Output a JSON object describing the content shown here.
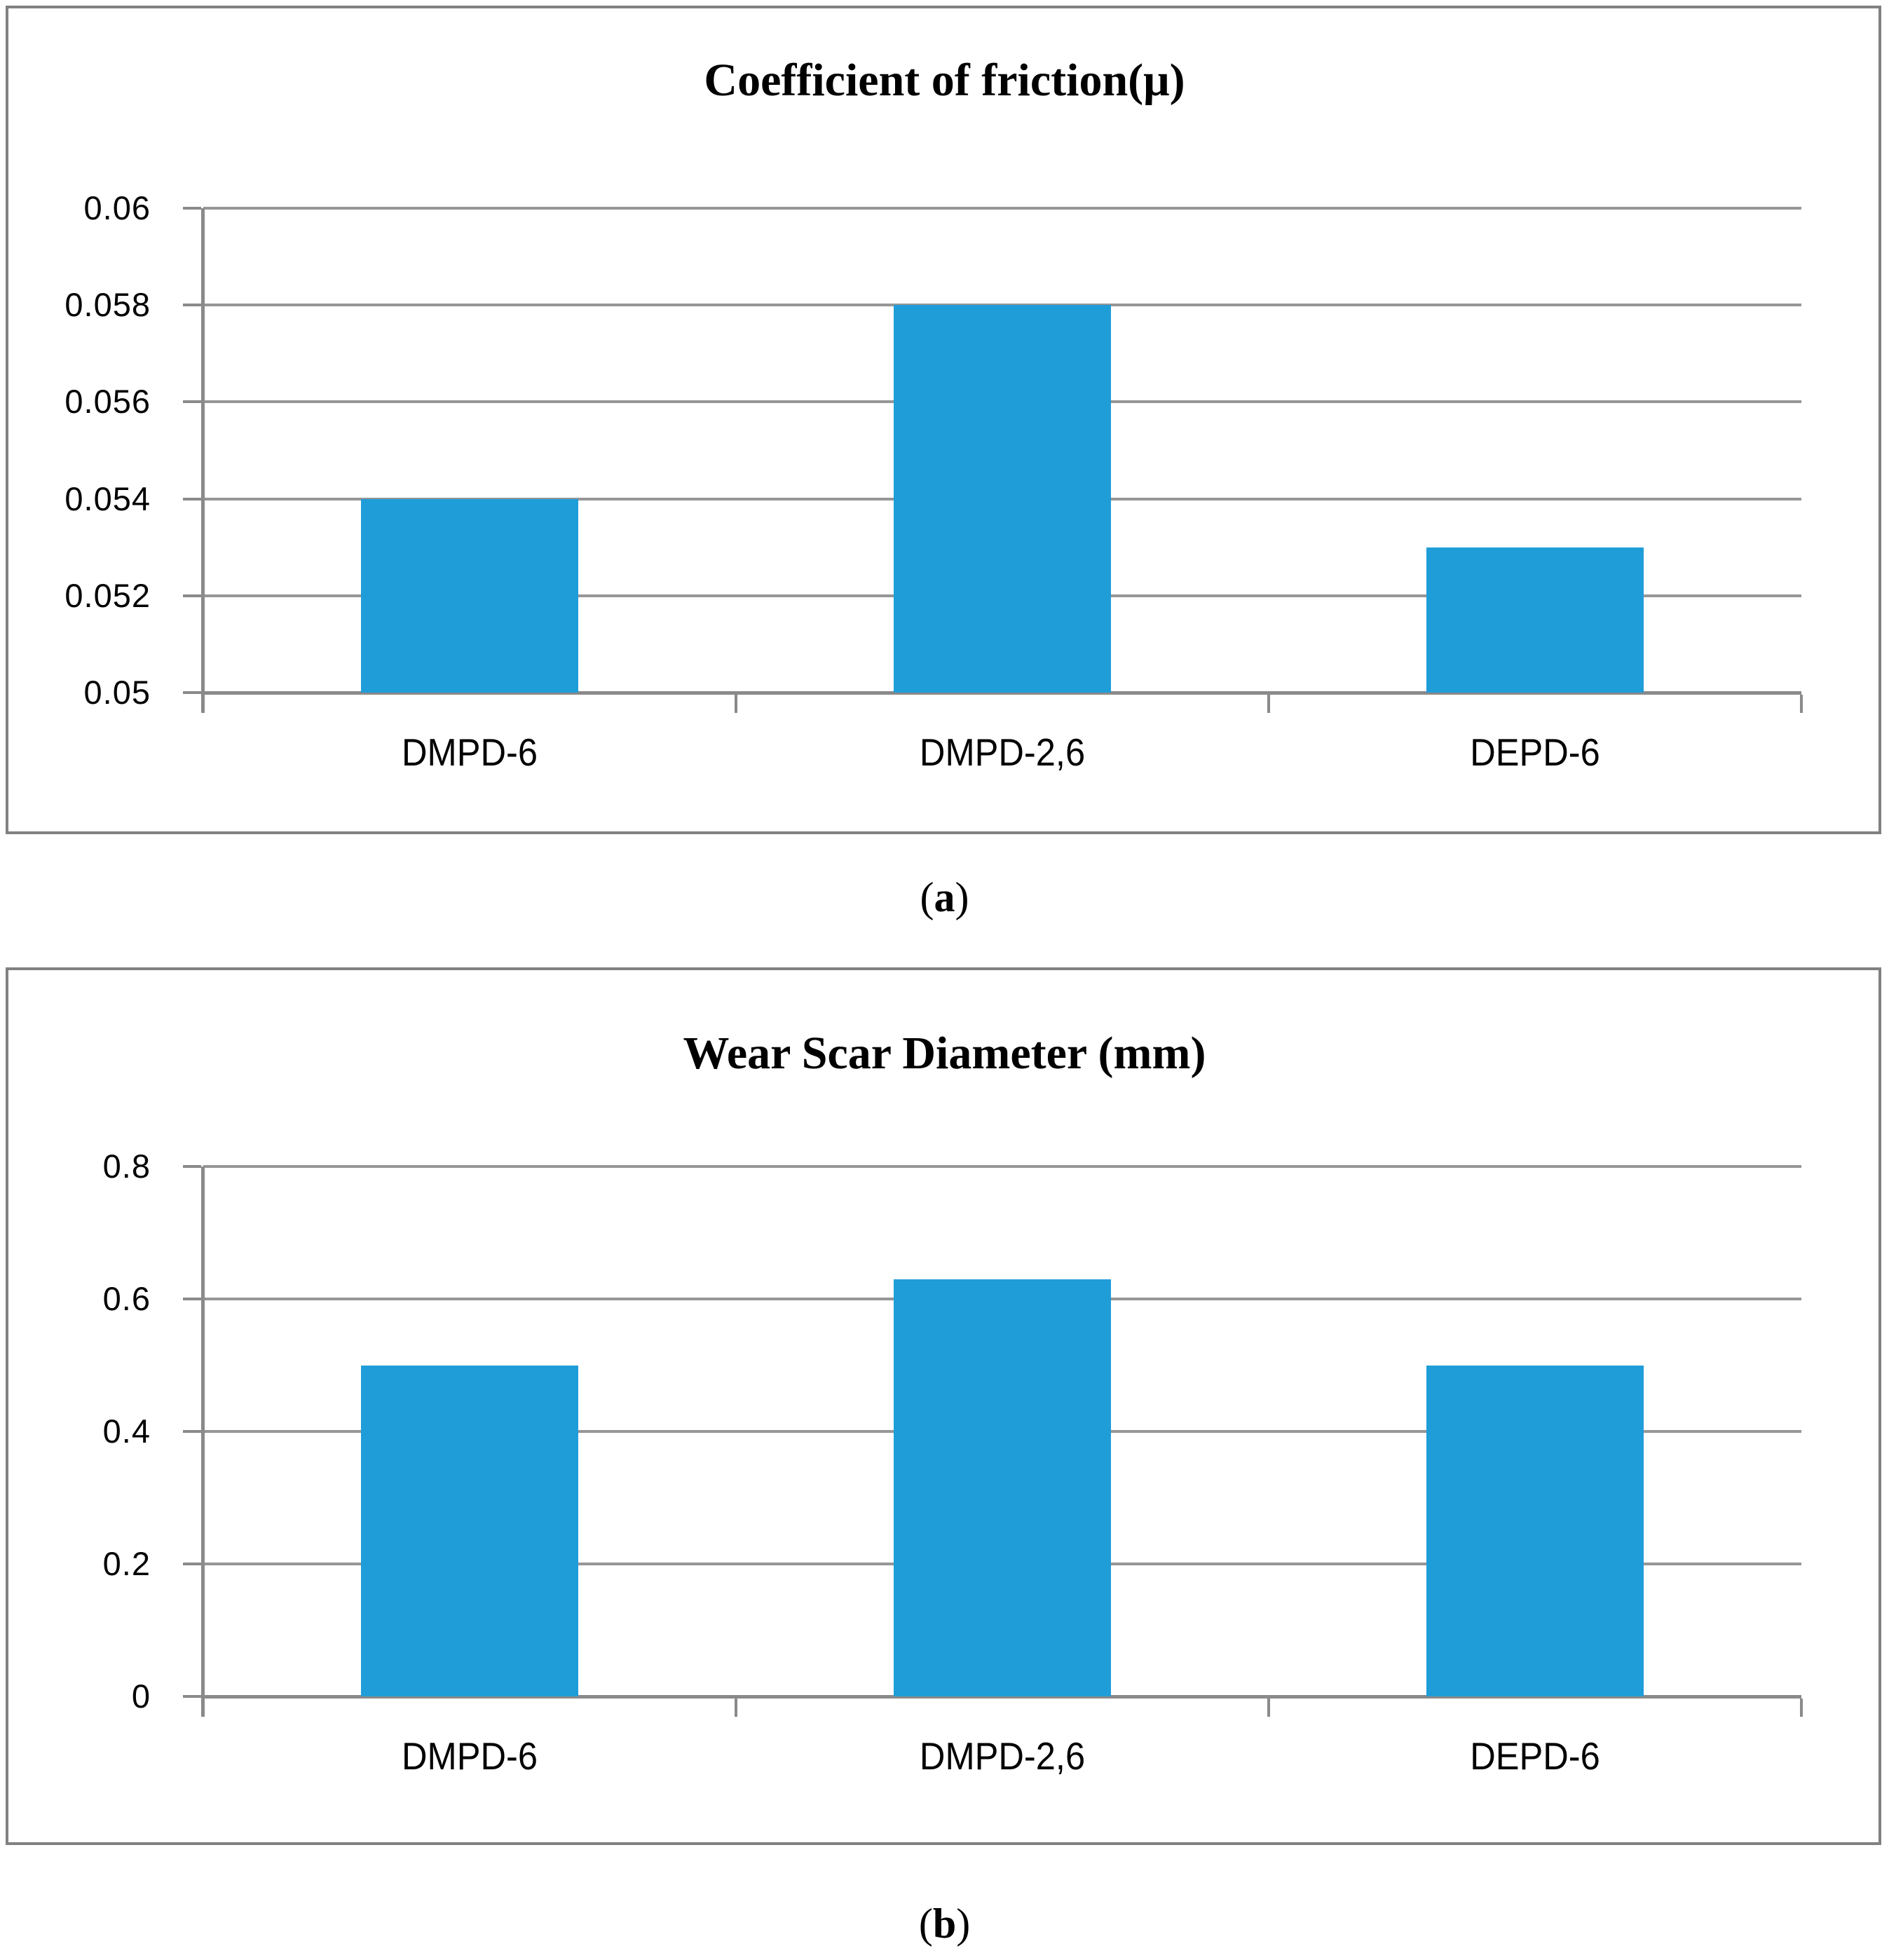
{
  "colors": {
    "bar": "#1F9DD8",
    "gridline": "#969696",
    "axis": "#8A8A8A",
    "box_border": "#818181",
    "text": "#000000",
    "background": "#FFFFFF"
  },
  "captions": {
    "a": "a",
    "b": "b"
  },
  "chart_data": [
    {
      "type": "bar",
      "title": "Coefficient of friction(μ)",
      "caption": "a",
      "categories": [
        "DMPD-6",
        "DMPD-2,6",
        "DEPD-6"
      ],
      "values": [
        0.054,
        0.058,
        0.053
      ],
      "xlabel": "",
      "ylabel": "",
      "ylim": [
        0.05,
        0.06
      ],
      "grid": true,
      "legend": false,
      "y_ticks": [
        {
          "value": 0.06,
          "label": "0.06"
        },
        {
          "value": 0.058,
          "label": "0.058"
        },
        {
          "value": 0.056,
          "label": "0.056"
        },
        {
          "value": 0.054,
          "label": "0.054"
        },
        {
          "value": 0.052,
          "label": "0.052"
        },
        {
          "value": 0.05,
          "label": "0.05"
        }
      ]
    },
    {
      "type": "bar",
      "title": "Wear Scar Diameter (mm)",
      "caption": "b",
      "categories": [
        "DMPD-6",
        "DMPD-2,6",
        "DEPD-6"
      ],
      "values": [
        0.5,
        0.63,
        0.5
      ],
      "xlabel": "",
      "ylabel": "",
      "ylim": [
        0,
        0.8
      ],
      "grid": true,
      "legend": false,
      "y_ticks": [
        {
          "value": 0.8,
          "label": "0.8"
        },
        {
          "value": 0.6,
          "label": "0.6"
        },
        {
          "value": 0.4,
          "label": "0.4"
        },
        {
          "value": 0.2,
          "label": "0.2"
        },
        {
          "value": 0,
          "label": "0"
        }
      ]
    }
  ]
}
